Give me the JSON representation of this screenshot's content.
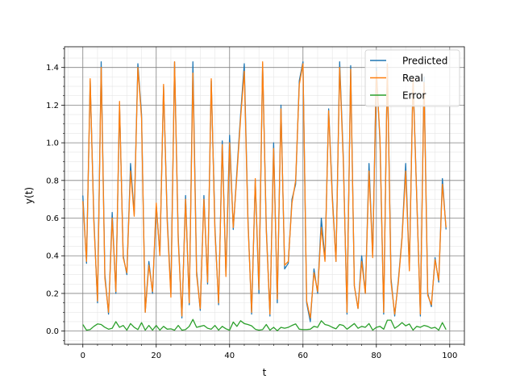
{
  "chart_data": {
    "type": "line",
    "title": "",
    "xlabel": "t",
    "ylabel": "y(t)",
    "xlim": [
      -5,
      104
    ],
    "ylim": [
      -0.07,
      1.51
    ],
    "xticks": [
      0,
      20,
      40,
      60,
      80,
      100
    ],
    "xtick_labels": [
      "0",
      "20",
      "40",
      "60",
      "80",
      "100"
    ],
    "yticks": [
      0.0,
      0.2,
      0.4,
      0.6,
      0.8,
      1.0,
      1.2,
      1.4
    ],
    "ytick_labels": [
      "0.0",
      "0.2",
      "0.4",
      "0.6",
      "0.8",
      "1.0",
      "1.2",
      "1.4"
    ],
    "grid": {
      "major": true,
      "minor": true
    },
    "legend_position": "top-right",
    "x": [
      0,
      1,
      2,
      3,
      4,
      5,
      6,
      7,
      8,
      9,
      10,
      11,
      12,
      13,
      14,
      15,
      16,
      17,
      18,
      19,
      20,
      21,
      22,
      23,
      24,
      25,
      26,
      27,
      28,
      29,
      30,
      31,
      32,
      33,
      34,
      35,
      36,
      37,
      38,
      39,
      40,
      41,
      42,
      43,
      44,
      45,
      46,
      47,
      48,
      49,
      50,
      51,
      52,
      53,
      54,
      55,
      56,
      57,
      58,
      59,
      60,
      61,
      62,
      63,
      64,
      65,
      66,
      67,
      68,
      69,
      70,
      71,
      72,
      73,
      74,
      75,
      76,
      77,
      78,
      79,
      80,
      81,
      82,
      83,
      84,
      85,
      86,
      87,
      88,
      89,
      90,
      91,
      92,
      93,
      94,
      95,
      96,
      97,
      98,
      99
    ],
    "series": [
      {
        "name": "Predicted",
        "color": "#1f77b4",
        "values": [
          0.72,
          0.36,
          1.33,
          0.6,
          0.15,
          1.43,
          0.3,
          0.09,
          0.63,
          0.2,
          1.2,
          0.4,
          0.3,
          0.89,
          0.62,
          1.42,
          1.15,
          0.1,
          0.37,
          0.2,
          0.67,
          0.41,
          1.3,
          0.6,
          0.2,
          1.43,
          0.5,
          0.07,
          0.72,
          0.14,
          1.43,
          0.32,
          0.11,
          0.72,
          0.25,
          1.33,
          0.55,
          0.14,
          1.01,
          0.3,
          1.04,
          0.54,
          0.85,
          1.15,
          1.42,
          0.6,
          0.09,
          0.8,
          0.2,
          1.42,
          0.55,
          0.08,
          1.0,
          0.15,
          1.2,
          0.33,
          0.36,
          0.7,
          0.78,
          1.33,
          1.43,
          0.15,
          0.05,
          0.33,
          0.2,
          0.6,
          0.38,
          1.18,
          0.72,
          0.37,
          1.43,
          0.92,
          0.09,
          1.41,
          0.24,
          0.12,
          0.4,
          0.2,
          0.89,
          0.4,
          1.4,
          1.0,
          0.09,
          1.42,
          0.28,
          0.08,
          0.27,
          0.5,
          0.89,
          0.33,
          1.35,
          0.72,
          0.08,
          1.35,
          0.2,
          0.13,
          0.39,
          0.26,
          0.81,
          0.54
        ]
      },
      {
        "name": "Real",
        "color": "#ff7f0e",
        "values": [
          0.69,
          0.37,
          1.34,
          0.58,
          0.16,
          1.4,
          0.28,
          0.1,
          0.6,
          0.21,
          1.22,
          0.39,
          0.31,
          0.85,
          0.61,
          1.4,
          1.13,
          0.1,
          0.35,
          0.21,
          0.68,
          0.4,
          1.31,
          0.58,
          0.18,
          1.43,
          0.48,
          0.08,
          0.7,
          0.15,
          1.37,
          0.3,
          0.12,
          0.7,
          0.26,
          1.34,
          0.53,
          0.15,
          0.99,
          0.29,
          1.0,
          0.55,
          0.83,
          1.13,
          1.38,
          0.58,
          0.1,
          0.81,
          0.22,
          1.43,
          0.53,
          0.09,
          0.97,
          0.17,
          1.18,
          0.35,
          0.37,
          0.68,
          0.8,
          1.31,
          1.42,
          0.16,
          0.07,
          0.31,
          0.21,
          0.55,
          0.37,
          1.17,
          0.7,
          0.37,
          1.4,
          0.9,
          0.1,
          1.39,
          0.24,
          0.12,
          0.37,
          0.2,
          0.85,
          0.39,
          1.38,
          1.02,
          0.1,
          1.42,
          0.26,
          0.09,
          0.26,
          0.49,
          0.85,
          0.32,
          1.34,
          0.71,
          0.09,
          1.32,
          0.19,
          0.14,
          0.38,
          0.27,
          0.78,
          0.55
        ]
      },
      {
        "name": "Error",
        "color": "#2ca02c",
        "values": [
          0.035,
          0.005,
          0.008,
          0.025,
          0.038,
          0.035,
          0.02,
          0.01,
          0.015,
          0.05,
          0.02,
          0.03,
          0.005,
          0.04,
          0.02,
          0.008,
          0.045,
          0.005,
          0.03,
          0.005,
          0.03,
          0.005,
          0.025,
          0.01,
          0.012,
          0.005,
          0.03,
          0.005,
          0.008,
          0.025,
          0.062,
          0.02,
          0.025,
          0.03,
          0.015,
          0.01,
          0.03,
          0.005,
          0.025,
          0.012,
          0.005,
          0.048,
          0.025,
          0.055,
          0.04,
          0.035,
          0.028,
          0.01,
          0.005,
          0.008,
          0.035,
          0.005,
          0.02,
          0.002,
          0.02,
          0.015,
          0.02,
          0.03,
          0.038,
          0.01,
          0.008,
          0.008,
          0.01,
          0.025,
          0.02,
          0.055,
          0.035,
          0.03,
          0.02,
          0.012,
          0.035,
          0.03,
          0.01,
          0.025,
          0.04,
          0.015,
          0.025,
          0.02,
          0.04,
          0.005,
          0.02,
          0.025,
          0.01,
          0.058,
          0.058,
          0.015,
          0.028,
          0.045,
          0.028,
          0.038,
          0.005,
          0.025,
          0.02,
          0.03,
          0.025,
          0.015,
          0.02,
          0.005,
          0.045,
          0.008
        ]
      }
    ]
  }
}
